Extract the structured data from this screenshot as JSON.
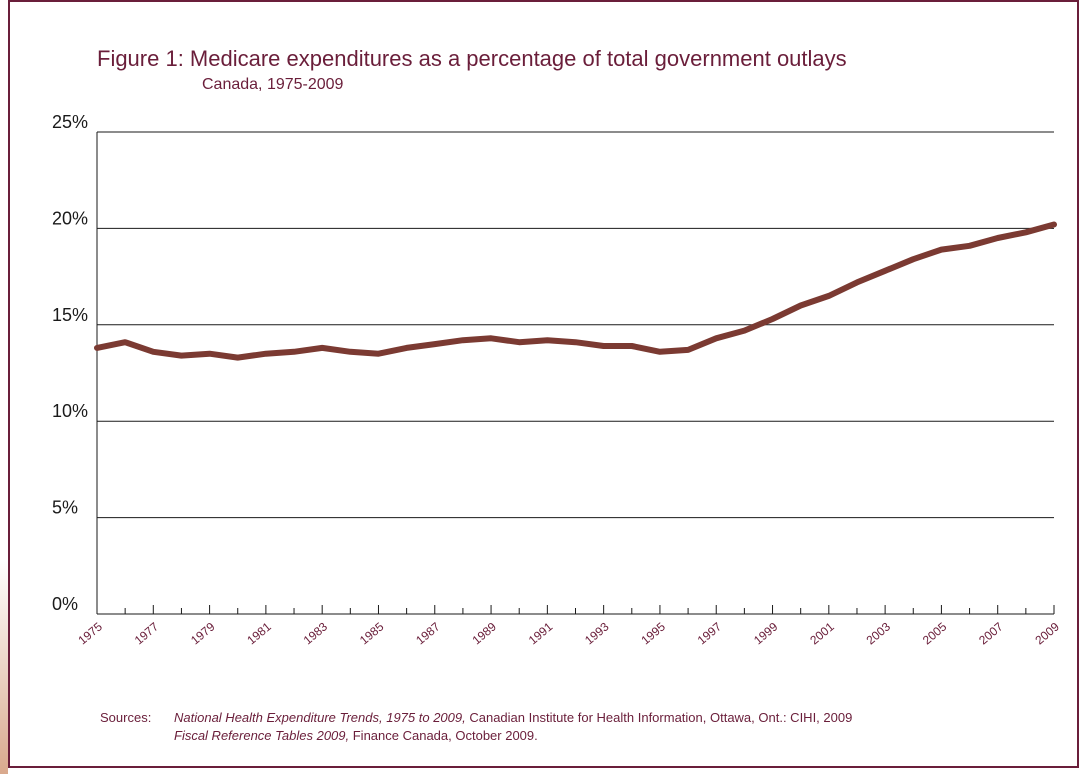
{
  "colors": {
    "frame": "#6a1e3a",
    "line": "#7b3a32",
    "text": "#6a1e3a",
    "grid": "#1a1a1a"
  },
  "chart_data": {
    "type": "line",
    "title": "Figure 1: Medicare expenditures as a percentage of total government outlays",
    "subtitle": "Canada, 1975-2009",
    "xlabel": "",
    "ylabel": "",
    "y_ticks": [
      "25%",
      "20%",
      "15%",
      "10%",
      "5%",
      "0%"
    ],
    "x_ticks": [
      "1975",
      "1977",
      "1979",
      "1981",
      "1983",
      "1985",
      "1987",
      "1989",
      "1991",
      "1993",
      "1995",
      "1997",
      "1999",
      "2001",
      "2003",
      "2005",
      "2007",
      "2009"
    ],
    "ylim": [
      0,
      25
    ],
    "grid": "horizontal",
    "series": [
      {
        "x": [
          1975,
          1976,
          1977,
          1978,
          1979,
          1980,
          1981,
          1982,
          1983,
          1984,
          1985,
          1986,
          1987,
          1988,
          1989,
          1990,
          1991,
          1992,
          1993,
          1994,
          1995,
          1996,
          1997,
          1998,
          1999,
          2000,
          2001,
          2002,
          2003,
          2004,
          2005,
          2006,
          2007,
          2008,
          2009
        ],
        "values": [
          13.8,
          14.1,
          13.6,
          13.4,
          13.5,
          13.3,
          13.5,
          13.6,
          13.8,
          13.6,
          13.5,
          13.8,
          14.0,
          14.2,
          14.3,
          14.1,
          14.2,
          14.1,
          13.9,
          13.9,
          13.6,
          13.7,
          14.3,
          14.7,
          15.3,
          16.0,
          16.5,
          17.2,
          17.8,
          18.4,
          18.9,
          19.1,
          19.5,
          19.8,
          20.2
        ]
      }
    ]
  },
  "sources": {
    "label": "Sources:",
    "line1_title": "National Health Expenditure Trends, 1975 to 2009,",
    "line1_rest": " Canadian Institute for Health Information, Ottawa, Ont.: CIHI, 2009",
    "line2_title": "Fiscal Reference Tables 2009,",
    "line2_rest": " Finance Canada, October 2009."
  }
}
